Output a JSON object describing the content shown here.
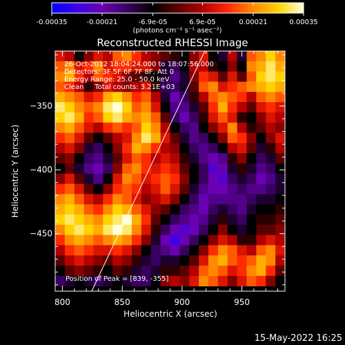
{
  "chart_data": {
    "type": "heatmap",
    "colorbar": {
      "ticks": [
        "-0.00035",
        "-0.00021",
        "-6.9e-05",
        "6.9e-05",
        "0.00021",
        "0.00035"
      ],
      "tick_values": [
        -0.00035,
        -0.00021,
        -6.9e-05,
        6.9e-05,
        0.00021,
        0.00035
      ],
      "range": [
        -0.00035,
        0.00035
      ],
      "units": "(photons cm⁻² s⁻¹ asec⁻²)",
      "colormap": [
        "#0000ff",
        "#3d00e8",
        "#6a00b4",
        "#3a0060",
        "#000000",
        "#5a0000",
        "#b30000",
        "#ff2a00",
        "#ff8a00",
        "#ffd200",
        "#ffffd8"
      ]
    },
    "title": "Reconstructed RHESSI Image",
    "annotations": [
      "26-Oct-2012 18:04:24.000 to 18:07:56.000",
      "Detectors: 3F 5F 6F 7F 8F, Att 0",
      "Energy Range: 25.0 - 50.0 keV",
      "Clean     Total counts: 3.21E+03"
    ],
    "peak_label": "Position of Peak = [839, -355]",
    "xlabel": "Heliocentric X (arcsec)",
    "ylabel": "Heliocentric Y (arcsec)",
    "xlim": [
      794,
      986
    ],
    "ylim": [
      -495,
      -307
    ],
    "xticks": [
      800,
      850,
      900,
      950
    ],
    "xtick_labels": [
      "800",
      "850",
      "900",
      "950"
    ],
    "yticks": [
      -350,
      -400,
      -450
    ],
    "ytick_labels": [
      "−350",
      "−400",
      "−450"
    ],
    "limb_line": {
      "x": [
        824.5,
        919
      ],
      "y": [
        -495,
        -307
      ]
    },
    "grid": false,
    "intensity_grid": {
      "x_centers": [
        798,
        806,
        814,
        822,
        830,
        838,
        846,
        854,
        862,
        870,
        878,
        886,
        894,
        902,
        910,
        918,
        926,
        934,
        942,
        950,
        958,
        966,
        974,
        982
      ],
      "y_centers": [
        -311,
        -319,
        -327,
        -335,
        -343,
        -351,
        -359,
        -367,
        -375,
        -383,
        -391,
        -399,
        -407,
        -415,
        -423,
        -431,
        -439,
        -447,
        -455,
        -463,
        -471,
        -479,
        -487
      ],
      "units": "fraction of colorbar range (-1 = -0.00035, +1 = +0.00035)",
      "values": [
        [
          0.3,
          0.2,
          -0.2,
          0.1,
          0.3,
          0.2,
          0.5,
          0.6,
          0.4,
          0.2,
          0.1,
          0.0,
          -0.1,
          -0.2,
          0.1,
          0.3,
          -0.2,
          -0.3,
          0.2,
          -0.3,
          0.5,
          0.6,
          0.8,
          0.6
        ],
        [
          0.5,
          0.6,
          0.3,
          0.4,
          0.6,
          0.3,
          0.4,
          0.4,
          0.3,
          0.3,
          0.1,
          -0.3,
          -0.4,
          -0.2,
          0.2,
          0.2,
          -0.1,
          -0.2,
          0.1,
          -0.2,
          0.6,
          0.7,
          0.9,
          0.7
        ],
        [
          0.6,
          0.7,
          0.4,
          0.2,
          0.5,
          0.4,
          0.3,
          0.1,
          0.0,
          -0.1,
          -0.2,
          -0.3,
          -0.5,
          -0.3,
          0.1,
          0.4,
          0.3,
          0.0,
          0.3,
          0.0,
          0.5,
          0.8,
          0.9,
          0.8
        ],
        [
          0.5,
          0.4,
          0.2,
          -0.1,
          0.1,
          0.3,
          0.2,
          0.1,
          0.2,
          0.3,
          -0.1,
          -0.4,
          -0.4,
          -0.3,
          0.0,
          0.5,
          0.6,
          0.3,
          0.4,
          0.5,
          0.6,
          0.7,
          0.8,
          0.7
        ],
        [
          0.7,
          0.6,
          0.5,
          0.3,
          0.4,
          0.7,
          0.8,
          0.6,
          0.4,
          0.5,
          0.2,
          -0.3,
          -0.6,
          -0.4,
          -0.1,
          0.2,
          0.5,
          0.6,
          0.5,
          0.4,
          0.2,
          0.5,
          0.6,
          0.5
        ],
        [
          0.9,
          0.8,
          0.6,
          0.5,
          0.6,
          0.9,
          1.0,
          0.8,
          0.5,
          0.6,
          0.3,
          -0.2,
          -0.5,
          -0.5,
          -0.3,
          0.0,
          0.4,
          0.7,
          0.4,
          0.2,
          0.0,
          0.3,
          0.4,
          0.3
        ],
        [
          0.8,
          0.9,
          0.7,
          0.4,
          0.5,
          0.8,
          0.9,
          0.7,
          0.6,
          0.7,
          0.5,
          0.0,
          -0.4,
          -0.6,
          -0.4,
          -0.1,
          0.3,
          0.5,
          0.3,
          -0.1,
          -0.2,
          0.1,
          0.3,
          0.2
        ],
        [
          0.6,
          0.7,
          0.5,
          0.3,
          0.2,
          0.4,
          0.5,
          0.4,
          0.5,
          0.8,
          0.6,
          0.2,
          -0.2,
          -0.4,
          -0.5,
          -0.2,
          0.1,
          0.3,
          0.6,
          0.2,
          -0.1,
          0.0,
          0.2,
          0.1
        ],
        [
          0.4,
          0.5,
          0.3,
          0.0,
          -0.2,
          0.0,
          0.2,
          0.3,
          0.6,
          0.9,
          0.7,
          0.3,
          0.0,
          -0.3,
          -0.5,
          -0.4,
          -0.2,
          0.1,
          0.5,
          0.4,
          0.1,
          -0.2,
          0.1,
          0.3
        ],
        [
          0.2,
          0.3,
          0.1,
          -0.3,
          -0.4,
          -0.2,
          0.1,
          0.4,
          0.7,
          0.6,
          0.4,
          0.2,
          0.1,
          -0.2,
          -0.4,
          -0.5,
          -0.4,
          -0.2,
          0.2,
          0.3,
          0.0,
          -0.3,
          -0.1,
          0.2
        ],
        [
          0.0,
          0.1,
          -0.2,
          -0.4,
          -0.5,
          -0.3,
          0.0,
          0.3,
          0.5,
          0.4,
          0.2,
          0.3,
          0.2,
          -0.1,
          -0.3,
          -0.5,
          -0.6,
          -0.5,
          -0.1,
          0.1,
          -0.2,
          -0.4,
          -0.3,
          0.0
        ],
        [
          -0.2,
          0.0,
          -0.3,
          -0.5,
          -0.6,
          -0.4,
          0.1,
          0.5,
          0.6,
          0.4,
          0.3,
          0.4,
          0.3,
          0.0,
          -0.2,
          -0.4,
          -0.7,
          -0.6,
          -0.3,
          -0.1,
          -0.3,
          -0.5,
          -0.4,
          -0.2
        ],
        [
          0.1,
          0.3,
          0.0,
          -0.3,
          -0.5,
          -0.2,
          0.3,
          0.6,
          0.5,
          0.3,
          0.4,
          0.5,
          0.4,
          0.1,
          -0.2,
          -0.4,
          -0.6,
          -0.7,
          -0.4,
          -0.3,
          -0.4,
          -0.6,
          -0.5,
          -0.3
        ],
        [
          0.4,
          0.5,
          0.3,
          0.0,
          -0.2,
          0.1,
          0.4,
          0.5,
          0.4,
          0.2,
          0.3,
          0.5,
          0.3,
          0.0,
          -0.3,
          -0.5,
          -0.6,
          -0.6,
          -0.5,
          -0.4,
          -0.5,
          -0.5,
          -0.4,
          -0.3
        ],
        [
          0.6,
          0.7,
          0.5,
          0.3,
          0.2,
          0.4,
          0.6,
          0.5,
          0.3,
          0.1,
          0.2,
          0.3,
          0.1,
          -0.2,
          -0.4,
          -0.6,
          -0.5,
          -0.5,
          -0.5,
          -0.5,
          -0.4,
          -0.3,
          -0.3,
          -0.2
        ],
        [
          0.7,
          0.8,
          0.7,
          0.5,
          0.4,
          0.6,
          0.8,
          0.7,
          0.5,
          0.3,
          0.1,
          0.0,
          -0.2,
          -0.4,
          -0.5,
          -0.6,
          -0.4,
          -0.3,
          -0.4,
          -0.5,
          -0.3,
          -0.2,
          -0.2,
          -0.1
        ],
        [
          0.8,
          0.9,
          0.8,
          0.7,
          0.6,
          0.8,
          0.9,
          1.0,
          0.7,
          0.4,
          0.0,
          -0.2,
          -0.4,
          -0.5,
          -0.6,
          -0.5,
          -0.3,
          -0.1,
          -0.3,
          -0.4,
          -0.2,
          -0.1,
          -0.1,
          0.0
        ],
        [
          0.6,
          0.8,
          0.9,
          0.8,
          0.7,
          0.9,
          1.0,
          0.9,
          0.6,
          0.3,
          -0.1,
          -0.4,
          -0.6,
          -0.7,
          -0.6,
          -0.4,
          -0.2,
          0.1,
          -0.2,
          -0.3,
          -0.2,
          0.0,
          0.0,
          0.1
        ],
        [
          0.4,
          0.6,
          0.7,
          0.6,
          0.5,
          0.6,
          0.7,
          0.6,
          0.4,
          0.1,
          -0.3,
          -0.6,
          -0.8,
          -0.6,
          -0.4,
          -0.2,
          0.1,
          0.3,
          0.2,
          -0.1,
          -0.1,
          0.2,
          0.3,
          0.2
        ],
        [
          0.2,
          0.4,
          0.5,
          0.4,
          0.3,
          0.3,
          0.4,
          0.3,
          0.1,
          -0.2,
          -0.4,
          -0.5,
          -0.6,
          -0.4,
          -0.2,
          0.1,
          0.4,
          0.6,
          0.5,
          0.3,
          0.2,
          0.5,
          0.6,
          0.3
        ],
        [
          0.0,
          0.2,
          0.3,
          0.2,
          0.1,
          0.0,
          0.2,
          0.1,
          -0.1,
          -0.3,
          -0.4,
          -0.3,
          -0.3,
          -0.2,
          0.0,
          0.3,
          0.6,
          0.7,
          0.5,
          0.4,
          0.5,
          0.7,
          0.6,
          0.2
        ],
        [
          -0.2,
          0.0,
          0.1,
          0.0,
          -0.1,
          -0.2,
          0.0,
          -0.1,
          -0.3,
          -0.4,
          -0.3,
          -0.1,
          -0.1,
          0.0,
          0.2,
          0.5,
          0.6,
          0.5,
          0.3,
          0.4,
          0.6,
          0.7,
          0.4,
          0.0
        ],
        [
          -0.4,
          -0.3,
          -0.2,
          -0.3,
          -0.4,
          -0.3,
          -0.2,
          -0.3,
          -0.4,
          -0.4,
          -0.2,
          0.1,
          0.2,
          0.1,
          0.3,
          0.6,
          0.5,
          0.3,
          0.1,
          0.3,
          0.5,
          0.4,
          0.1,
          -0.2
        ]
      ]
    }
  },
  "timestamp": "15-May-2022 16:25"
}
